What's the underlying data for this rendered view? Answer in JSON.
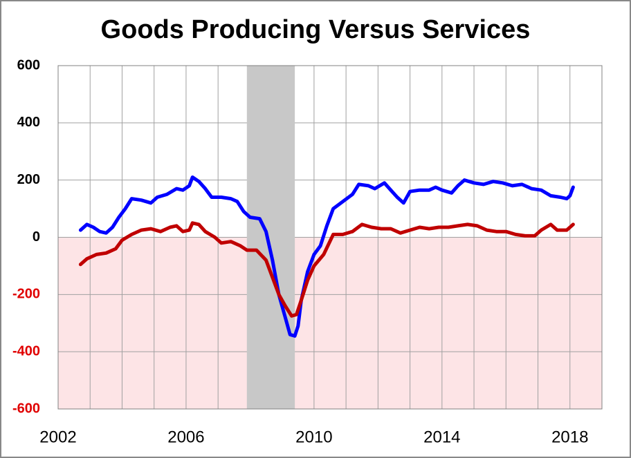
{
  "chart_data": {
    "type": "line",
    "title": "Goods Producing Versus Services",
    "xlim": [
      2002,
      2019
    ],
    "xticks": [
      2002,
      2006,
      2010,
      2014,
      2018
    ],
    "x_minor_ticks": [
      2003,
      2004,
      2005,
      2007,
      2008,
      2009,
      2011,
      2012,
      2013,
      2015,
      2016,
      2017
    ],
    "ylim": [
      -600,
      600
    ],
    "yticks": [
      -600,
      -400,
      -200,
      0,
      200,
      400,
      600
    ],
    "grid": true,
    "positive_tick_color": "#000000",
    "negative_tick_color": "#e00000",
    "negative_region_color": "#fde4e6",
    "shaded_regions": [
      [
        2007.9,
        2009.4
      ]
    ],
    "shaded_color": "#c8c8c8",
    "series": [
      {
        "color": "#0000ff",
        "x": [
          2002.7,
          2002.9,
          2003.1,
          2003.3,
          2003.5,
          2003.7,
          2003.9,
          2004.1,
          2004.3,
          2004.6,
          2004.9,
          2005.1,
          2005.4,
          2005.7,
          2005.9,
          2006.1,
          2006.2,
          2006.4,
          2006.6,
          2006.8,
          2007.1,
          2007.4,
          2007.6,
          2007.8,
          2008.0,
          2008.3,
          2008.5,
          2008.7,
          2008.9,
          2009.1,
          2009.25,
          2009.4,
          2009.5,
          2009.6,
          2009.8,
          2010.0,
          2010.2,
          2010.4,
          2010.6,
          2010.9,
          2011.2,
          2011.4,
          2011.7,
          2011.9,
          2012.2,
          2012.4,
          2012.6,
          2012.8,
          2013.0,
          2013.3,
          2013.6,
          2013.8,
          2014.0,
          2014.3,
          2014.5,
          2014.7,
          2015.0,
          2015.3,
          2015.6,
          2015.9,
          2016.2,
          2016.5,
          2016.8,
          2017.1,
          2017.4,
          2017.7,
          2017.9,
          2018.0,
          2018.1
        ],
        "values": [
          25,
          45,
          35,
          20,
          15,
          35,
          70,
          100,
          135,
          130,
          120,
          140,
          150,
          170,
          165,
          180,
          210,
          195,
          170,
          140,
          140,
          135,
          125,
          90,
          70,
          65,
          20,
          -80,
          -200,
          -280,
          -340,
          -345,
          -310,
          -220,
          -120,
          -60,
          -30,
          40,
          100,
          125,
          150,
          185,
          180,
          170,
          190,
          165,
          140,
          120,
          160,
          165,
          165,
          175,
          165,
          155,
          180,
          200,
          190,
          185,
          195,
          190,
          180,
          185,
          170,
          165,
          145,
          140,
          135,
          145,
          175
        ]
      },
      {
        "color": "#c00000",
        "x": [
          2002.7,
          2002.9,
          2003.2,
          2003.5,
          2003.8,
          2004.0,
          2004.3,
          2004.6,
          2004.9,
          2005.2,
          2005.5,
          2005.7,
          2005.9,
          2006.1,
          2006.2,
          2006.4,
          2006.6,
          2006.9,
          2007.1,
          2007.4,
          2007.7,
          2007.9,
          2008.2,
          2008.5,
          2008.7,
          2008.9,
          2009.1,
          2009.3,
          2009.45,
          2009.6,
          2009.8,
          2010.0,
          2010.3,
          2010.6,
          2010.9,
          2011.2,
          2011.5,
          2011.8,
          2012.1,
          2012.4,
          2012.7,
          2013.0,
          2013.3,
          2013.6,
          2013.9,
          2014.2,
          2014.5,
          2014.8,
          2015.1,
          2015.4,
          2015.7,
          2016.0,
          2016.3,
          2016.6,
          2016.9,
          2017.1,
          2017.4,
          2017.6,
          2017.9,
          2018.1
        ],
        "values": [
          -95,
          -75,
          -60,
          -55,
          -40,
          -10,
          10,
          25,
          30,
          20,
          35,
          40,
          20,
          25,
          50,
          45,
          20,
          0,
          -20,
          -15,
          -30,
          -45,
          -45,
          -80,
          -140,
          -200,
          -240,
          -275,
          -270,
          -220,
          -150,
          -100,
          -60,
          10,
          10,
          20,
          45,
          35,
          30,
          30,
          15,
          25,
          35,
          30,
          35,
          35,
          40,
          45,
          40,
          25,
          20,
          20,
          10,
          5,
          5,
          25,
          45,
          25,
          25,
          45
        ]
      }
    ]
  }
}
